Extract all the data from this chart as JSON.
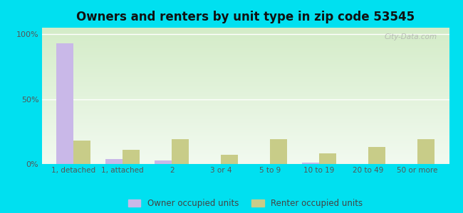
{
  "title": "Owners and renters by unit type in zip code 53545",
  "categories": [
    "1, detached",
    "1, attached",
    "2",
    "3 or 4",
    "5 to 9",
    "10 to 19",
    "20 to 49",
    "50 or more"
  ],
  "owner_values": [
    93,
    4,
    3,
    0,
    0,
    1,
    0,
    0
  ],
  "renter_values": [
    18,
    11,
    19,
    7,
    19,
    8,
    13,
    19
  ],
  "owner_color": "#c9b8e8",
  "renter_color": "#c8cc88",
  "background_outer": "#00e0f0",
  "background_top": "#d4ecc8",
  "background_bottom": "#f2faf0",
  "title_fontsize": 12,
  "ylabel_ticks": [
    "0%",
    "50%",
    "100%"
  ],
  "ylabel_values": [
    0,
    50,
    100
  ],
  "ylim": [
    0,
    105
  ],
  "xlim_min": -0.65,
  "xlim_max": 7.65,
  "bar_width": 0.35,
  "legend_labels": [
    "Owner occupied units",
    "Renter occupied units"
  ],
  "watermark": "City-Data.com"
}
